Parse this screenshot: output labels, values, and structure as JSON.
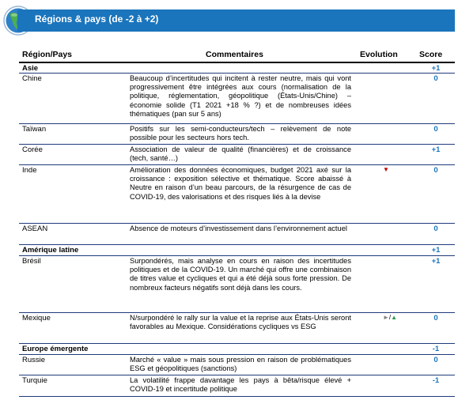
{
  "header": {
    "title": "Régions & pays (de -2 à +2)"
  },
  "columns": {
    "region": "Région/Pays",
    "comments": "Commentaires",
    "evolution": "Evolution",
    "score": "Score"
  },
  "colors": {
    "banner": "#1b75bc",
    "score": "#1b75bc",
    "down": "#c00000",
    "up": "#2e9b48",
    "neutral": "#808080"
  },
  "rows": [
    {
      "type": "group",
      "region": "Asie",
      "comment": "",
      "score": "+1"
    },
    {
      "type": "country",
      "region": "Chine",
      "comment": "Beaucoup d’incertitudes qui incitent à rester neutre, mais qui vont progressivement être intégrées aux cours (normalisation de la politique, réglementation, géopolitique (États-Unis/Chine) – économie solide (T1 2021 +18 % ?) et de nombreuses idées thématiques (pan sur 5 ans)",
      "score": "0"
    },
    {
      "type": "country",
      "region": "Taïwan",
      "comment": "Positifs sur les semi-conducteurs/tech – relèvement de note possible pour les secteurs hors tech.",
      "score": "0"
    },
    {
      "type": "country",
      "region": "Corée",
      "comment": "Association de valeur de qualité (financières) et de croissance (tech, santé…)",
      "score": "+1"
    },
    {
      "type": "country",
      "region": "Inde",
      "comment": "Amélioration des données économiques, budget 2021 axé sur la croissance : exposition sélective et thématique. Score abaissé à Neutre en raison d’un beau parcours, de la résurgence de cas de COVID-19, des valorisations et des risques liés à la devise",
      "evolution": "down",
      "score": "0"
    },
    {
      "type": "country",
      "region": "ASEAN",
      "comment": "Absence de moteurs d’investissement dans l’environnement actuel",
      "score": "0"
    },
    {
      "type": "group",
      "region": "Amérique latine",
      "comment": "",
      "score": "+1"
    },
    {
      "type": "country",
      "region": "Brésil",
      "comment": "Surpondérés, mais analyse en cours en raison des incertitudes politiques et de la COVID-19. Un marché qui offre une combinaison de titres value et cycliques et qui a été déjà sous forte pression. De nombreux facteurs négatifs sont déjà dans les cours.",
      "score": "+1"
    },
    {
      "type": "country",
      "region": "Mexique",
      "comment": "N/surpondéré le rally sur la value et la reprise aux États-Unis seront favorables au Mexique. Considérations cycliques vs ESG",
      "evolution": "right-up",
      "score": "0"
    },
    {
      "type": "group",
      "region": "Europe émergente",
      "comment": "",
      "score": "-1"
    },
    {
      "type": "country",
      "region": "Russie",
      "comment": "Marché « value » mais sous pression en raison de problématiques ESG et géopolitiques (sanctions)",
      "score": "0"
    },
    {
      "type": "country",
      "region": "Turquie",
      "comment": "La volatilité frappe davantage les pays à bêta/risque élevé + COVID-19 et incertitude politique",
      "score": "-1"
    }
  ]
}
